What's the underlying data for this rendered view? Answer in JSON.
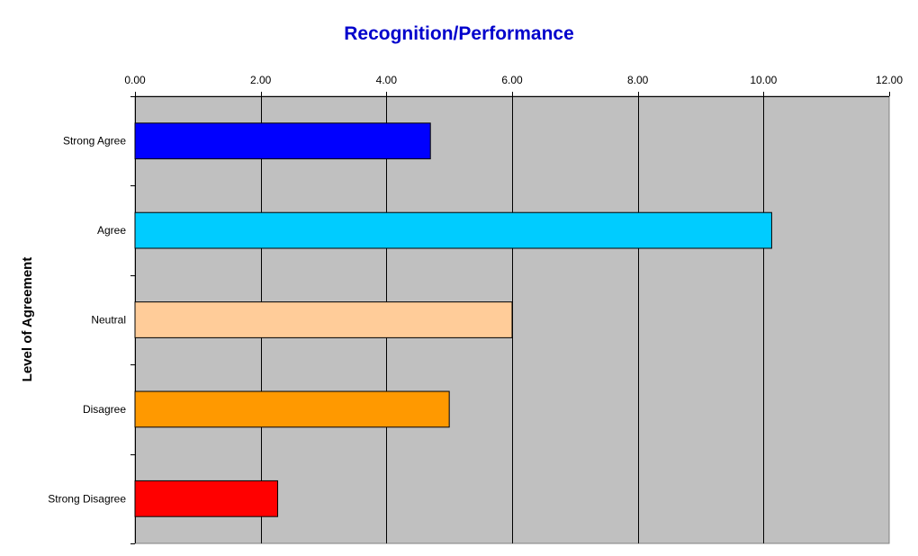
{
  "chart_data": {
    "type": "bar",
    "orientation": "horizontal",
    "title": "Recognition/Performance",
    "xlabel": "",
    "ylabel": "Level of Agreement",
    "categories": [
      "Strong Agree",
      "Agree",
      "Neutral",
      "Disagree",
      "Strong Disagree"
    ],
    "values": [
      4.7,
      10.13,
      6.0,
      5.0,
      2.27
    ],
    "bar_colors": [
      "#0000ff",
      "#00ccff",
      "#ffcc99",
      "#ff9900",
      "#ff0000"
    ],
    "xlim": [
      0,
      12
    ],
    "x_ticks": [
      0,
      2,
      4,
      6,
      8,
      10,
      12
    ],
    "x_tick_labels": [
      "0.00",
      "2.00",
      "4.00",
      "6.00",
      "8.00",
      "10.00",
      "12.00"
    ],
    "x_axis_position": "top",
    "grid": "vertical",
    "legend": "none",
    "colors": {
      "title": "#0000cc",
      "plot_background": "#c0c0c0",
      "gridline": "#000000"
    }
  }
}
